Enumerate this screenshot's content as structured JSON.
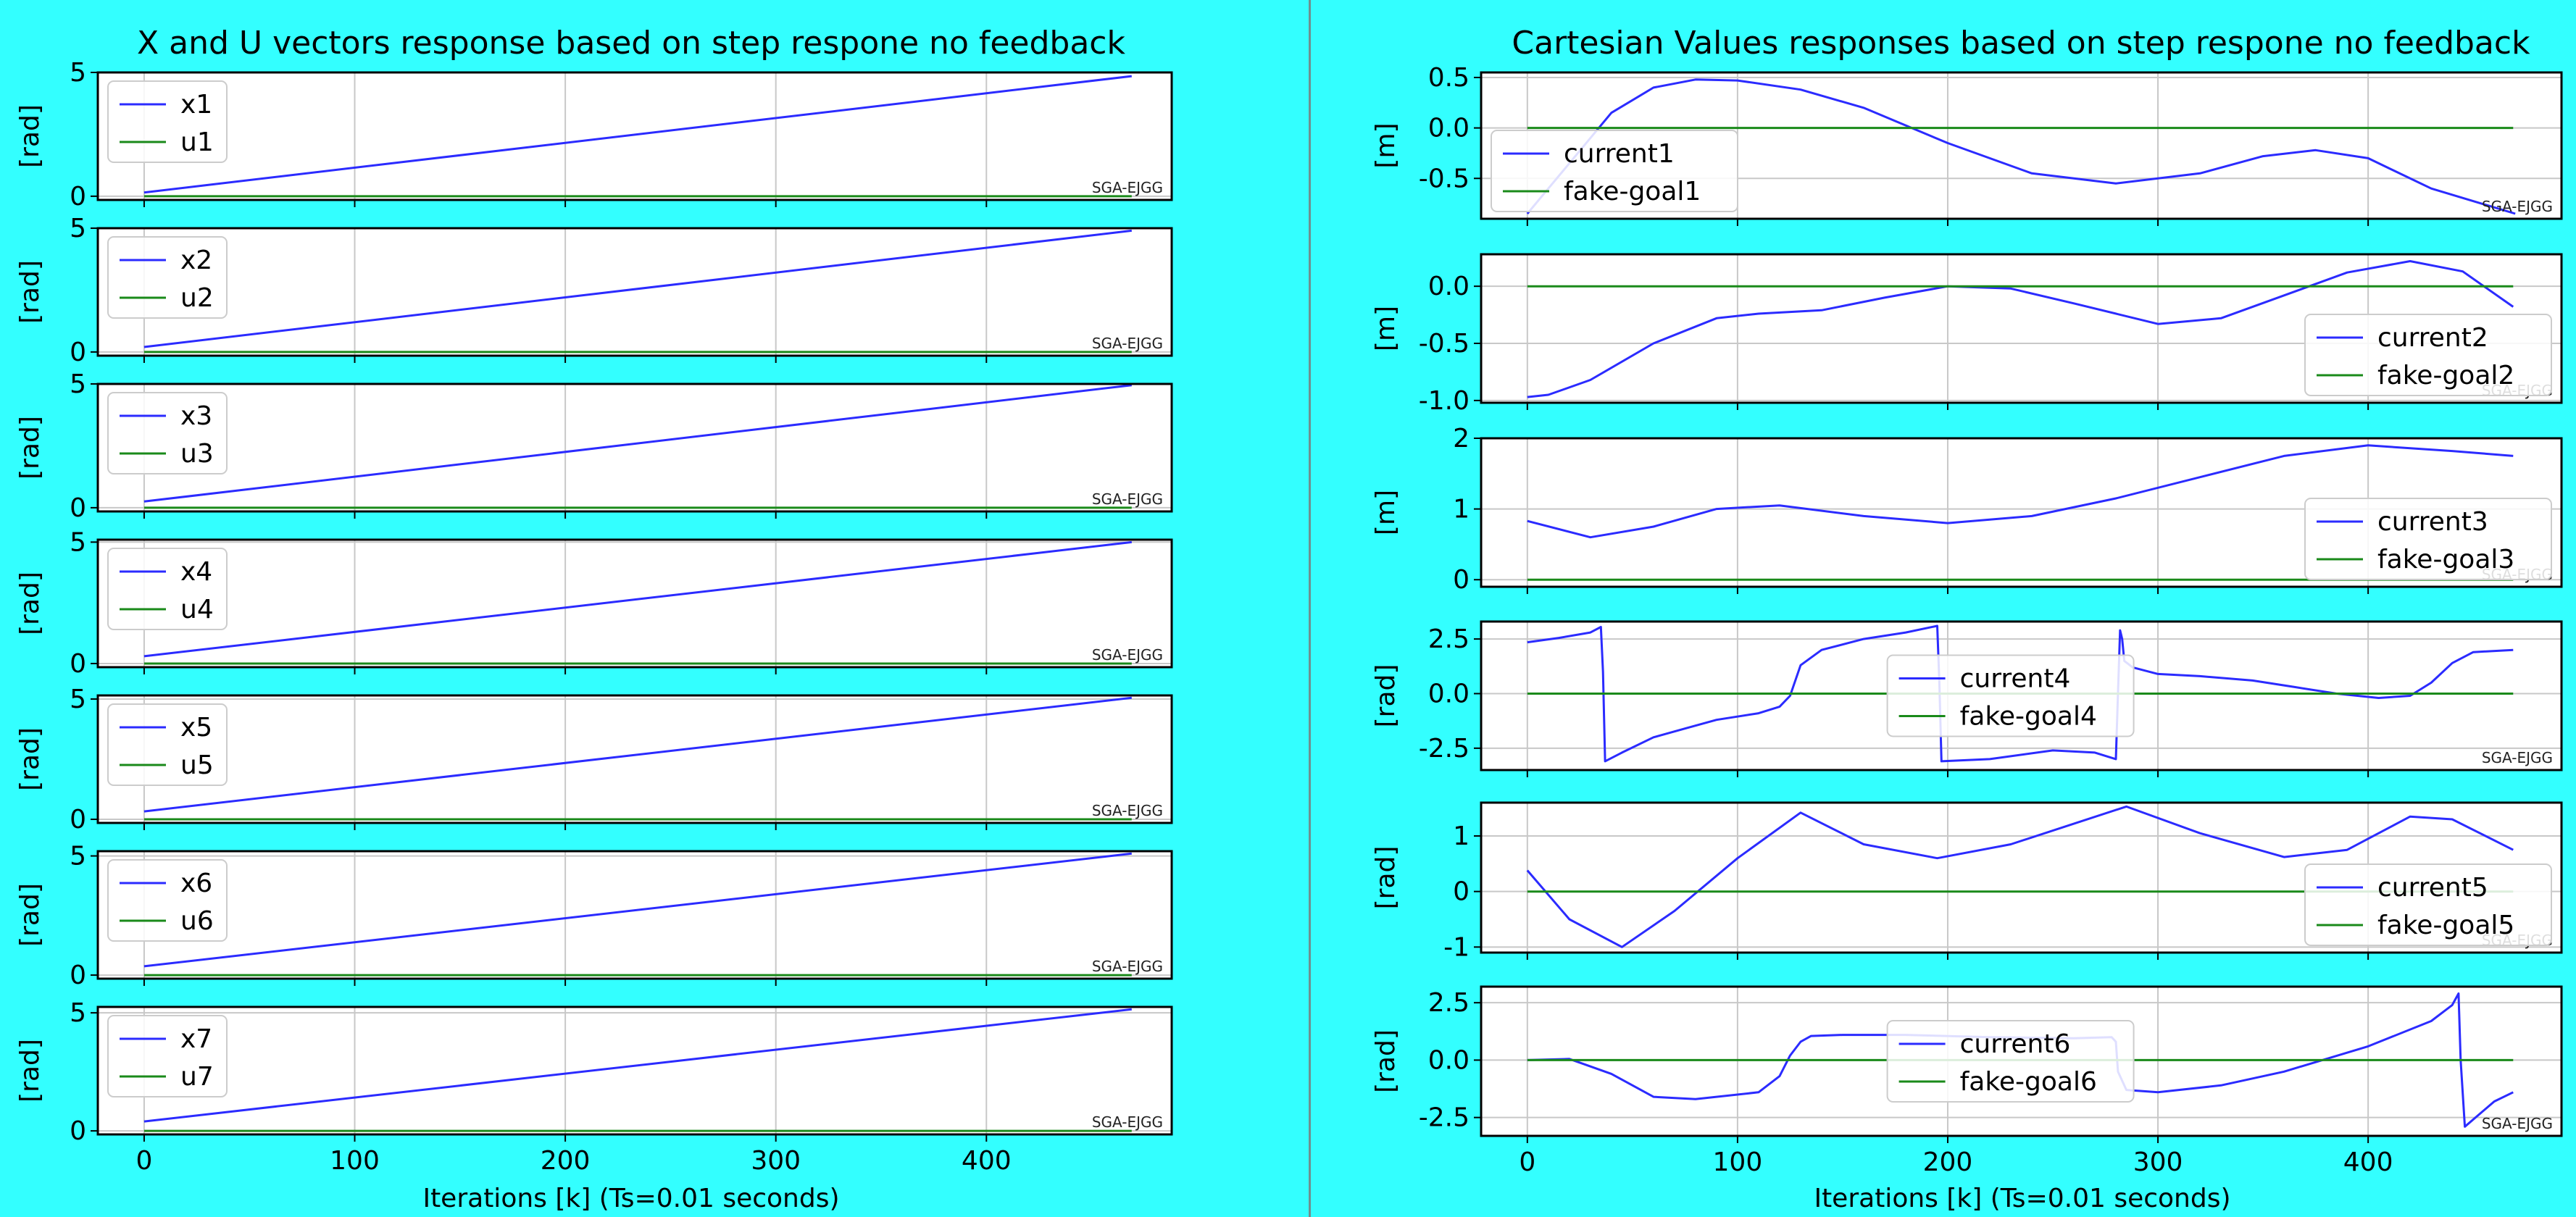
{
  "figure": {
    "background": "#33ffff",
    "line_colors": {
      "x": "#2b2bff",
      "u": "#1a8a1a"
    },
    "watermark": "SGA-EJGG"
  },
  "chart_data": [
    {
      "type": "line",
      "panel": "left",
      "title": "X and U vectors response based on step respone no feedback",
      "xlabel": "Iterations [k] (Ts=0.01 seconds)",
      "xlim": [
        -22,
        488
      ],
      "xticks": [
        "0",
        "100",
        "200",
        "300",
        "400"
      ],
      "grid": true,
      "subplots": [
        {
          "ylabel": "[rad]",
          "ylim": [
            -0.15,
            5.0
          ],
          "yticks": [
            0,
            5
          ],
          "legend_loc": "upper-left",
          "series": [
            {
              "name": "x1",
              "x": [
                0,
                469
              ],
              "y": [
                0.15,
                4.85
              ]
            },
            {
              "name": "u1",
              "x": [
                0,
                469
              ],
              "y": [
                0,
                0
              ]
            }
          ]
        },
        {
          "ylabel": "[rad]",
          "ylim": [
            -0.15,
            5.0
          ],
          "yticks": [
            0,
            5
          ],
          "legend_loc": "upper-left",
          "series": [
            {
              "name": "x2",
              "x": [
                0,
                469
              ],
              "y": [
                0.2,
                4.9
              ]
            },
            {
              "name": "u2",
              "x": [
                0,
                469
              ],
              "y": [
                0,
                0
              ]
            }
          ]
        },
        {
          "ylabel": "[rad]",
          "ylim": [
            -0.15,
            5.0
          ],
          "yticks": [
            0,
            5
          ],
          "legend_loc": "upper-left",
          "series": [
            {
              "name": "x3",
              "x": [
                0,
                469
              ],
              "y": [
                0.25,
                4.95
              ]
            },
            {
              "name": "u3",
              "x": [
                0,
                469
              ],
              "y": [
                0,
                0
              ]
            }
          ]
        },
        {
          "ylabel": "[rad]",
          "ylim": [
            -0.15,
            5.1
          ],
          "yticks": [
            0,
            5
          ],
          "legend_loc": "upper-left",
          "series": [
            {
              "name": "x4",
              "x": [
                0,
                469
              ],
              "y": [
                0.3,
                5.0
              ]
            },
            {
              "name": "u4",
              "x": [
                0,
                469
              ],
              "y": [
                0,
                0
              ]
            }
          ]
        },
        {
          "ylabel": "[rad]",
          "ylim": [
            -0.15,
            5.15
          ],
          "yticks": [
            0,
            5
          ],
          "legend_loc": "upper-left",
          "series": [
            {
              "name": "x5",
              "x": [
                0,
                469
              ],
              "y": [
                0.33,
                5.05
              ]
            },
            {
              "name": "u5",
              "x": [
                0,
                469
              ],
              "y": [
                0,
                0
              ]
            }
          ]
        },
        {
          "ylabel": "[rad]",
          "ylim": [
            -0.15,
            5.2
          ],
          "yticks": [
            0,
            5
          ],
          "legend_loc": "upper-left",
          "series": [
            {
              "name": "x6",
              "x": [
                0,
                469
              ],
              "y": [
                0.37,
                5.1
              ]
            },
            {
              "name": "u6",
              "x": [
                0,
                469
              ],
              "y": [
                0,
                0
              ]
            }
          ]
        },
        {
          "ylabel": "[rad]",
          "ylim": [
            -0.15,
            5.25
          ],
          "yticks": [
            0,
            5
          ],
          "legend_loc": "upper-left",
          "series": [
            {
              "name": "x7",
              "x": [
                0,
                469
              ],
              "y": [
                0.4,
                5.15
              ]
            },
            {
              "name": "u7",
              "x": [
                0,
                469
              ],
              "y": [
                0,
                0
              ]
            }
          ]
        }
      ]
    },
    {
      "type": "line",
      "panel": "right",
      "title": "Cartesian Values responses based on step respone no feedback",
      "xlabel": "Iterations [k] (Ts=0.01 seconds)",
      "xlim": [
        -22,
        492
      ],
      "xticks": [
        "0",
        "100",
        "200",
        "300",
        "400"
      ],
      "grid": true,
      "subplots": [
        {
          "ylabel": "[m]",
          "ylim": [
            -0.9,
            0.55
          ],
          "yticks": [
            "0.5",
            "0.0",
            "-0.5"
          ],
          "legend_loc": "lower-left",
          "series": [
            {
              "name": "current1",
              "x": [
                0,
                20,
                40,
                60,
                80,
                100,
                130,
                160,
                200,
                240,
                280,
                320,
                350,
                375,
                400,
                430,
                470
              ],
              "y": [
                -0.85,
                -0.35,
                0.15,
                0.4,
                0.48,
                0.47,
                0.38,
                0.2,
                -0.15,
                -0.45,
                -0.55,
                -0.45,
                -0.28,
                -0.22,
                -0.3,
                -0.6,
                -0.85
              ]
            },
            {
              "name": "fake-goal1",
              "x": [
                0,
                469
              ],
              "y": [
                0,
                0
              ]
            }
          ]
        },
        {
          "ylabel": "[m]",
          "ylim": [
            -1.02,
            0.28
          ],
          "yticks": [
            "0.0",
            "-0.5",
            "-1.0"
          ],
          "legend_loc": "lower-right",
          "series": [
            {
              "name": "current2",
              "x": [
                0,
                10,
                30,
                60,
                90,
                110,
                140,
                170,
                200,
                230,
                260,
                300,
                330,
                360,
                390,
                420,
                445,
                469
              ],
              "y": [
                -0.97,
                -0.95,
                -0.82,
                -0.5,
                -0.28,
                -0.24,
                -0.21,
                -0.1,
                0.0,
                -0.02,
                -0.15,
                -0.33,
                -0.28,
                -0.08,
                0.12,
                0.22,
                0.13,
                -0.18
              ]
            },
            {
              "name": "fake-goal2",
              "x": [
                0,
                469
              ],
              "y": [
                0,
                0
              ]
            }
          ]
        },
        {
          "ylabel": "[m]",
          "ylim": [
            -0.1,
            2.0
          ],
          "yticks": [
            "2",
            "1",
            "0"
          ],
          "legend_loc": "lower-right",
          "series": [
            {
              "name": "current3",
              "x": [
                0,
                30,
                60,
                90,
                120,
                160,
                200,
                240,
                280,
                320,
                360,
                400,
                440,
                469
              ],
              "y": [
                0.83,
                0.6,
                0.75,
                1.0,
                1.05,
                0.9,
                0.8,
                0.9,
                1.15,
                1.45,
                1.75,
                1.9,
                1.82,
                1.75
              ]
            },
            {
              "name": "fake-goal3",
              "x": [
                0,
                469
              ],
              "y": [
                0,
                0
              ]
            }
          ]
        },
        {
          "ylabel": "[rad]",
          "ylim": [
            -3.5,
            3.3
          ],
          "yticks": [
            "2.5",
            "0.0",
            "-2.5"
          ],
          "legend_loc": "center",
          "series": [
            {
              "name": "current4",
              "x": [
                0,
                15,
                30,
                35,
                36,
                37,
                45,
                60,
                75,
                90,
                110,
                120,
                125,
                130,
                140,
                160,
                180,
                195,
                196,
                197,
                220,
                250,
                270,
                280,
                281,
                282,
                283,
                284,
                288,
                300,
                320,
                345,
                365,
                385,
                405,
                420,
                430,
                440,
                450,
                469
              ],
              "y": [
                2.35,
                2.55,
                2.8,
                3.05,
                1.0,
                -3.1,
                -2.7,
                -2.0,
                -1.6,
                -1.2,
                -0.9,
                -0.6,
                -0.1,
                1.3,
                2.0,
                2.5,
                2.8,
                3.1,
                0.5,
                -3.1,
                -3.0,
                -2.6,
                -2.7,
                -3.0,
                0.0,
                2.9,
                2.5,
                1.5,
                1.2,
                0.9,
                0.8,
                0.6,
                0.3,
                0.0,
                -0.2,
                -0.1,
                0.5,
                1.4,
                1.9,
                2.0
              ]
            },
            {
              "name": "fake-goal4",
              "x": [
                0,
                469
              ],
              "y": [
                0,
                0
              ]
            }
          ]
        },
        {
          "ylabel": "[rad]",
          "ylim": [
            -1.1,
            1.6
          ],
          "yticks": [
            "1",
            "0",
            "-1"
          ],
          "legend_loc": "lower-right",
          "series": [
            {
              "name": "current5",
              "x": [
                0,
                20,
                45,
                70,
                100,
                130,
                160,
                195,
                230,
                285,
                320,
                360,
                390,
                420,
                440,
                469
              ],
              "y": [
                0.38,
                -0.5,
                -1.0,
                -0.35,
                0.6,
                1.42,
                0.85,
                0.6,
                0.85,
                1.53,
                1.05,
                0.62,
                0.75,
                1.35,
                1.3,
                0.75
              ]
            },
            {
              "name": "fake-goal5",
              "x": [
                0,
                469
              ],
              "y": [
                0,
                0
              ]
            }
          ]
        },
        {
          "ylabel": "[rad]",
          "ylim": [
            -3.3,
            3.2
          ],
          "yticks": [
            "2.5",
            "0.0",
            "-2.5"
          ],
          "legend_loc": "center",
          "series": [
            {
              "name": "current6",
              "x": [
                0,
                20,
                40,
                60,
                80,
                110,
                120,
                125,
                130,
                135,
                150,
                180,
                220,
                260,
                278,
                280,
                281,
                285,
                300,
                330,
                360,
                400,
                430,
                440,
                443,
                444,
                446,
                460,
                469
              ],
              "y": [
                0,
                0.05,
                -0.6,
                -1.6,
                -1.7,
                -1.4,
                -0.7,
                0.2,
                0.8,
                1.05,
                1.1,
                1.1,
                1.0,
                0.95,
                1.0,
                0.8,
                -0.5,
                -1.3,
                -1.4,
                -1.1,
                -0.5,
                0.6,
                1.7,
                2.4,
                2.9,
                0.0,
                -2.9,
                -1.8,
                -1.4
              ]
            },
            {
              "name": "fake-goal6",
              "x": [
                0,
                469
              ],
              "y": [
                0,
                0
              ]
            }
          ]
        }
      ]
    }
  ]
}
